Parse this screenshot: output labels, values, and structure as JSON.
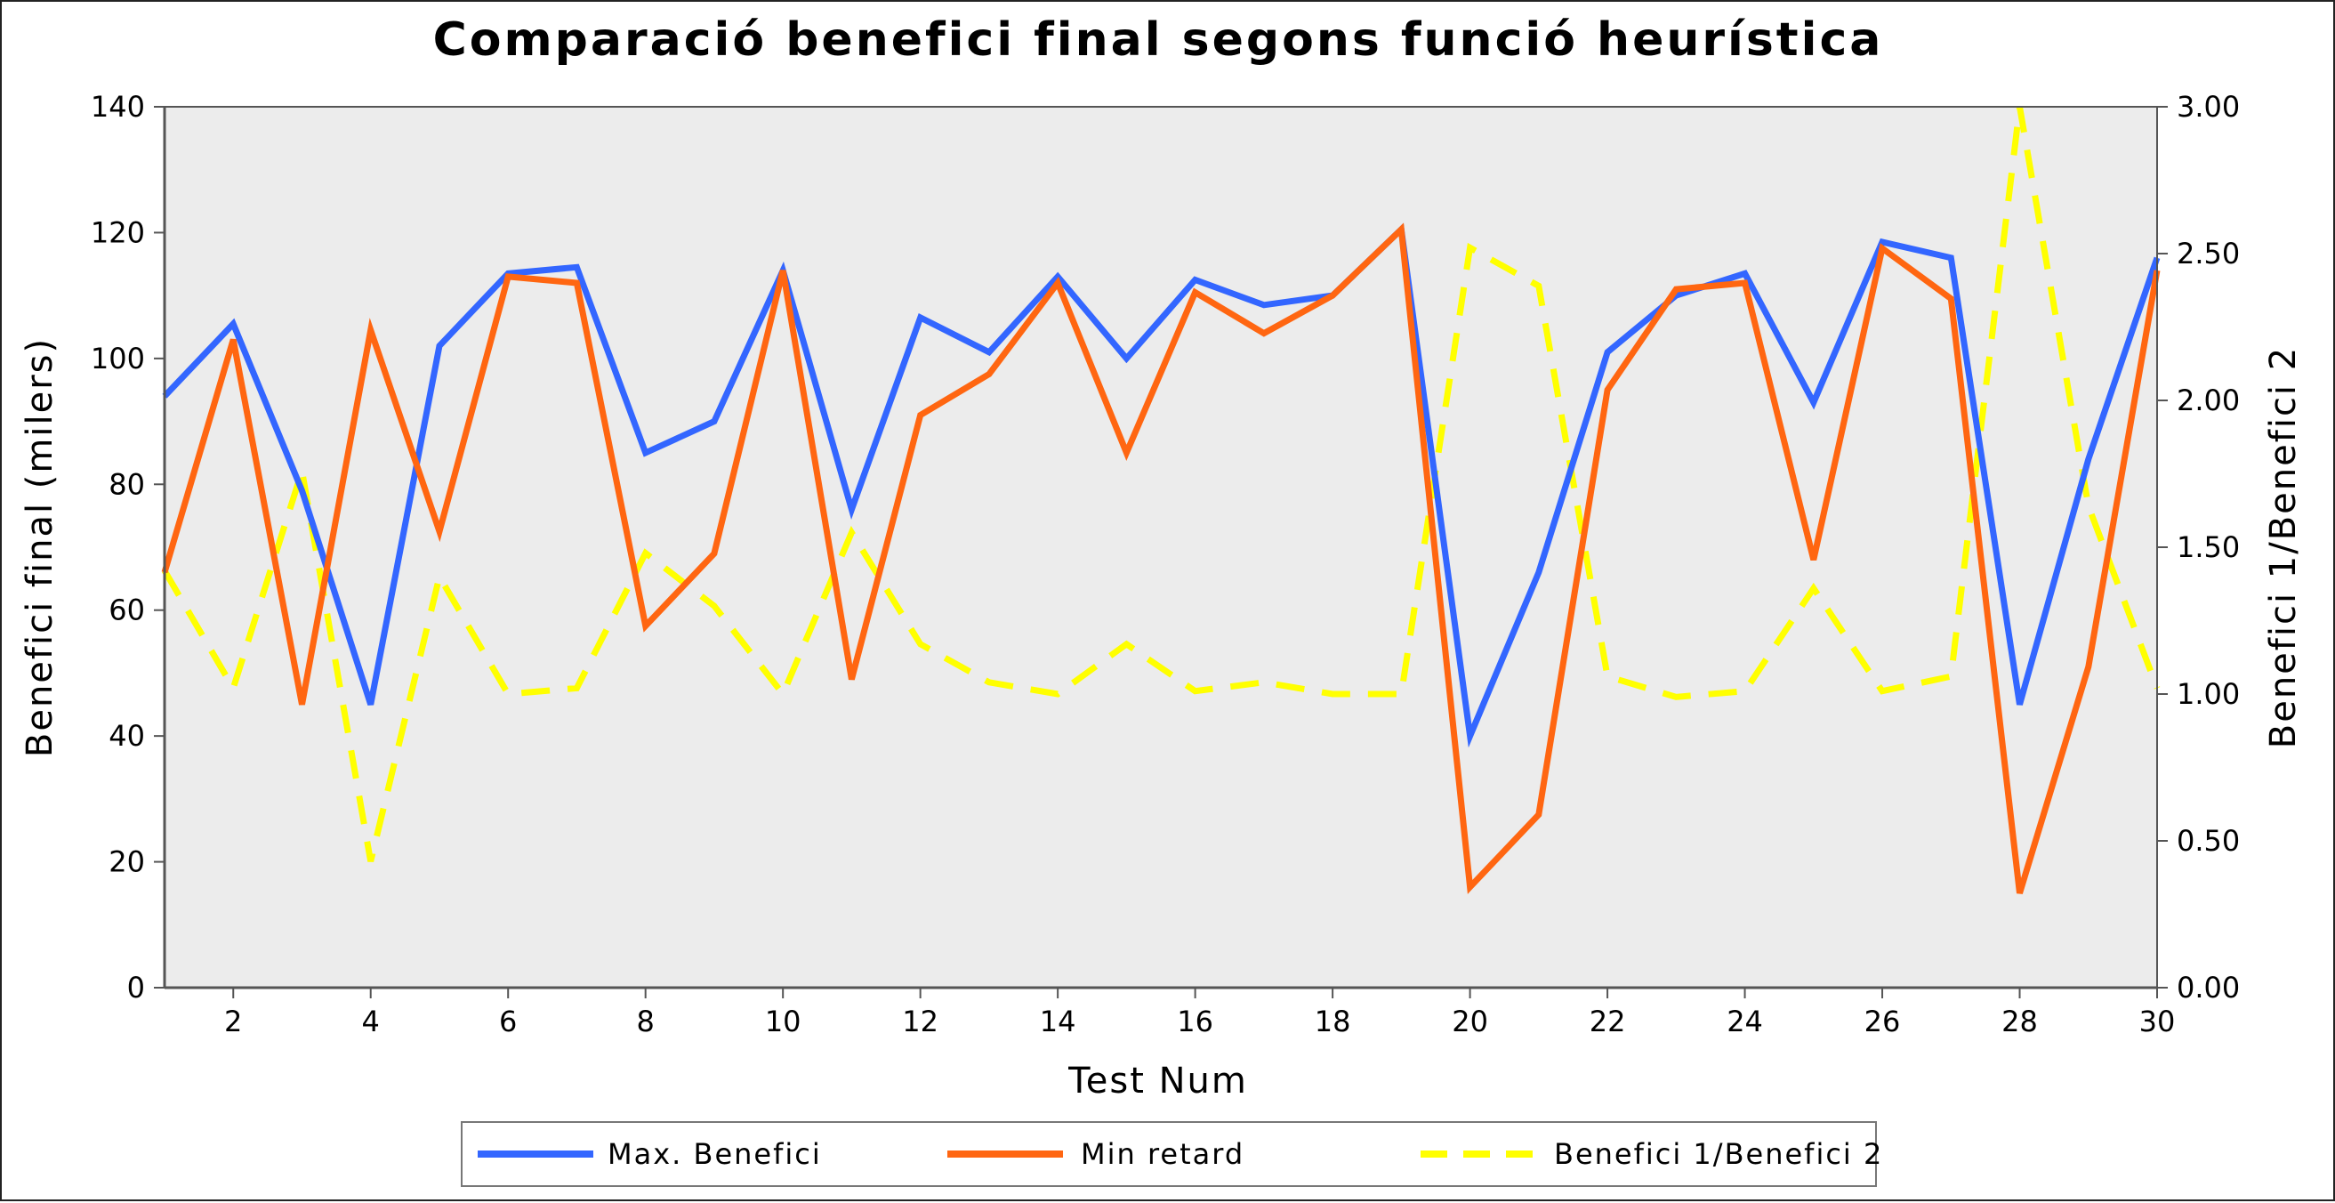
{
  "chart_data": {
    "type": "line",
    "title": "Comparació benefici final segons funció heurística",
    "xlabel": "Test Num",
    "ylabel": "Benefici final (milers)",
    "y2label": "Benefici 1/Benefici 2",
    "xlim": [
      1,
      30
    ],
    "ylim": [
      0,
      140
    ],
    "y2lim": [
      0,
      3.0
    ],
    "xticks": [
      2,
      4,
      6,
      8,
      10,
      12,
      14,
      16,
      18,
      20,
      22,
      24,
      26,
      28,
      30
    ],
    "yticks": [
      0,
      20,
      40,
      60,
      80,
      100,
      120,
      140
    ],
    "y2ticks": [
      "0.00",
      "0.50",
      "1.00",
      "1.50",
      "2.00",
      "2.50",
      "3.00"
    ],
    "y2tick_values": [
      0,
      0.5,
      1.0,
      1.5,
      2.0,
      2.5,
      3.0
    ],
    "grid": false,
    "legend_position": "bottom",
    "plot_background": "#ececec",
    "x": [
      1,
      2,
      3,
      4,
      5,
      6,
      7,
      8,
      9,
      10,
      11,
      12,
      13,
      14,
      15,
      16,
      17,
      18,
      19,
      20,
      21,
      22,
      23,
      24,
      25,
      26,
      27,
      28,
      29,
      30
    ],
    "series": [
      {
        "name": "Max. Benefici",
        "axis": "left",
        "color": "#3366ff",
        "dash": false,
        "values": [
          94,
          105.5,
          79,
          45,
          102,
          113.5,
          114.5,
          85,
          90,
          114,
          76,
          106.5,
          101,
          113,
          100,
          112.5,
          108.5,
          110,
          120.5,
          40,
          66,
          101,
          110,
          113.5,
          93,
          118.5,
          116,
          45,
          84,
          116
        ]
      },
      {
        "name": "Min retard",
        "axis": "left",
        "color": "#ff6611",
        "dash": false,
        "values": [
          66,
          103,
          45,
          104.5,
          72.5,
          113,
          112,
          57.5,
          69,
          114,
          49,
          91,
          97.5,
          112,
          85,
          110.5,
          104,
          110,
          120.5,
          16,
          27.5,
          95,
          111,
          112,
          68,
          117.5,
          109.5,
          15,
          51,
          114
        ]
      },
      {
        "name": "Benefici 1/Benefici 2",
        "axis": "right",
        "color": "#ffff00",
        "dash": true,
        "values": [
          1.42,
          1.02,
          1.76,
          0.43,
          1.4,
          1.0,
          1.02,
          1.48,
          1.3,
          1.0,
          1.55,
          1.17,
          1.04,
          1.0,
          1.17,
          1.01,
          1.04,
          1.0,
          1.0,
          2.52,
          2.39,
          1.06,
          0.99,
          1.01,
          1.36,
          1.01,
          1.06,
          3.0,
          1.64,
          1.02
        ]
      }
    ]
  }
}
